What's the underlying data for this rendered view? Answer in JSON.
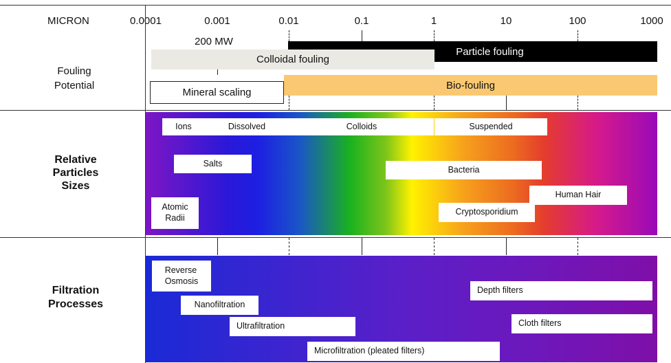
{
  "axis": {
    "title": "MICRON",
    "ticks": [
      "0.0001",
      "0.001",
      "0.01",
      "0.1",
      "1",
      "10",
      "100",
      "1000"
    ]
  },
  "mw_label": "200 MW",
  "rows": {
    "fouling": "Fouling\nPotential",
    "particles": "Relative\nParticles\nSizes",
    "filtration": "Filtration\nProcesses"
  },
  "fouling_bars": {
    "particle": "Particle fouling",
    "colloidal": "Colloidal fouling",
    "bio": "Bio-fouling",
    "mineral": "Mineral scaling"
  },
  "particle_headers": {
    "ions": "Ions",
    "dissolved": "Dissolved",
    "colloids": "Colloids",
    "suspended": "Suspended"
  },
  "particles": {
    "salts": "Salts",
    "atomic_radii": "Atomic\nRadii",
    "bacteria": "Bacteria",
    "human_hair": "Human Hair",
    "cryptosporidium": "Cryptosporidium"
  },
  "processes": {
    "reverse_osmosis": "Reverse\nOsmosis",
    "nanofiltration": "Nanofiltration",
    "ultrafiltration": "Ultrafiltration",
    "microfiltration": "Microfiltration (pleated filters)",
    "depth_filters": "Depth filters",
    "cloth_filters": "Cloth filters"
  },
  "colors": {
    "particle_fouling": "#000000",
    "colloidal_fouling": "#ebe9e3",
    "bio_fouling": "#fac872",
    "spectrum": [
      "#7d16c4",
      "#1d1fe2",
      "#1ab21e",
      "#fff200",
      "#f7a21c",
      "#e43c2e",
      "#d61a8a",
      "#9a0ab8"
    ],
    "filtration": [
      "#1a2ad6",
      "#5a1fc8",
      "#7f0fa8"
    ]
  }
}
